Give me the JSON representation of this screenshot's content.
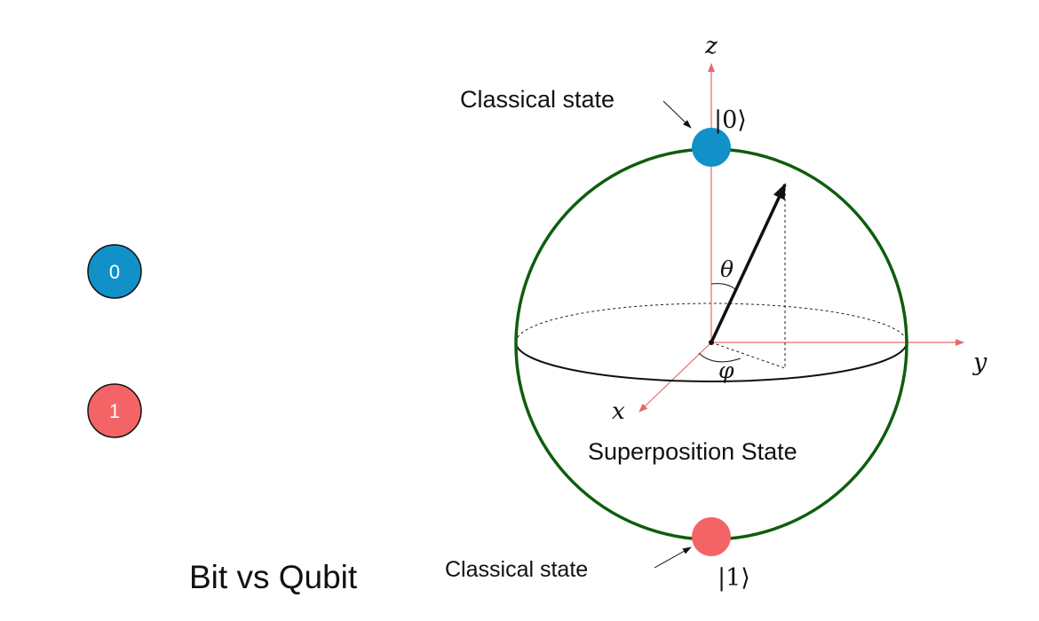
{
  "bits": [
    {
      "label": "0",
      "color": "#1191c8"
    },
    {
      "label": "1",
      "color": "#f46466"
    }
  ],
  "title": "Bit vs Qubit",
  "bloch": {
    "axes": {
      "z": "z",
      "y": "y",
      "x": "x"
    },
    "angles": {
      "theta": "θ",
      "phi": "φ"
    },
    "states": {
      "zero": {
        "ket": "|0⟩",
        "color": "#1191c8",
        "label": "Classical state"
      },
      "one": {
        "ket": "|1⟩",
        "color": "#f46466",
        "label": "Classical state"
      }
    },
    "superposition_label": "Superposition State",
    "sphere_color": "#0d5e0d",
    "axis_color": "#e56a6a"
  }
}
